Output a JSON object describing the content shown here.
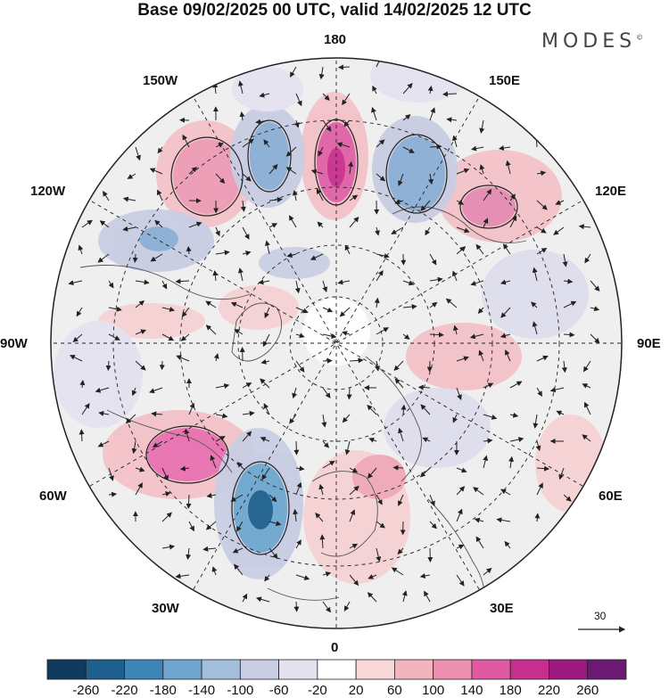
{
  "title": "Base 09/02/2025 00 UTC, valid 14/02/2025 12 UTC",
  "logo": "MODES",
  "logo_mark": "©",
  "longitude_labels": {
    "lon_180": "180",
    "lon_150e": "150E",
    "lon_120e": "120E",
    "lon_90e": "90E",
    "lon_60e": "60E",
    "lon_30e": "30E",
    "lon_0": "0",
    "lon_30w": "30W",
    "lon_60w": "60W",
    "lon_90w": "90W",
    "lon_120w": "120W",
    "lon_150w": "150W"
  },
  "wind_scale_label": "30",
  "colorbar": {
    "colors": [
      "#0f3a5e",
      "#1e5f8e",
      "#3d85b8",
      "#6ea6cf",
      "#a4bfdc",
      "#c8cde3",
      "#e4e2ef",
      "#ffffff",
      "#f7d7d7",
      "#f2b4bd",
      "#ec8fb0",
      "#e05aa3",
      "#c72f8e",
      "#9c1a7f",
      "#6a1a72"
    ],
    "tick_labels": [
      "-260",
      "-220",
      "-180",
      "-140",
      "-100",
      "-60",
      "-20",
      "20",
      "60",
      "100",
      "140",
      "180",
      "220",
      "260"
    ]
  }
}
